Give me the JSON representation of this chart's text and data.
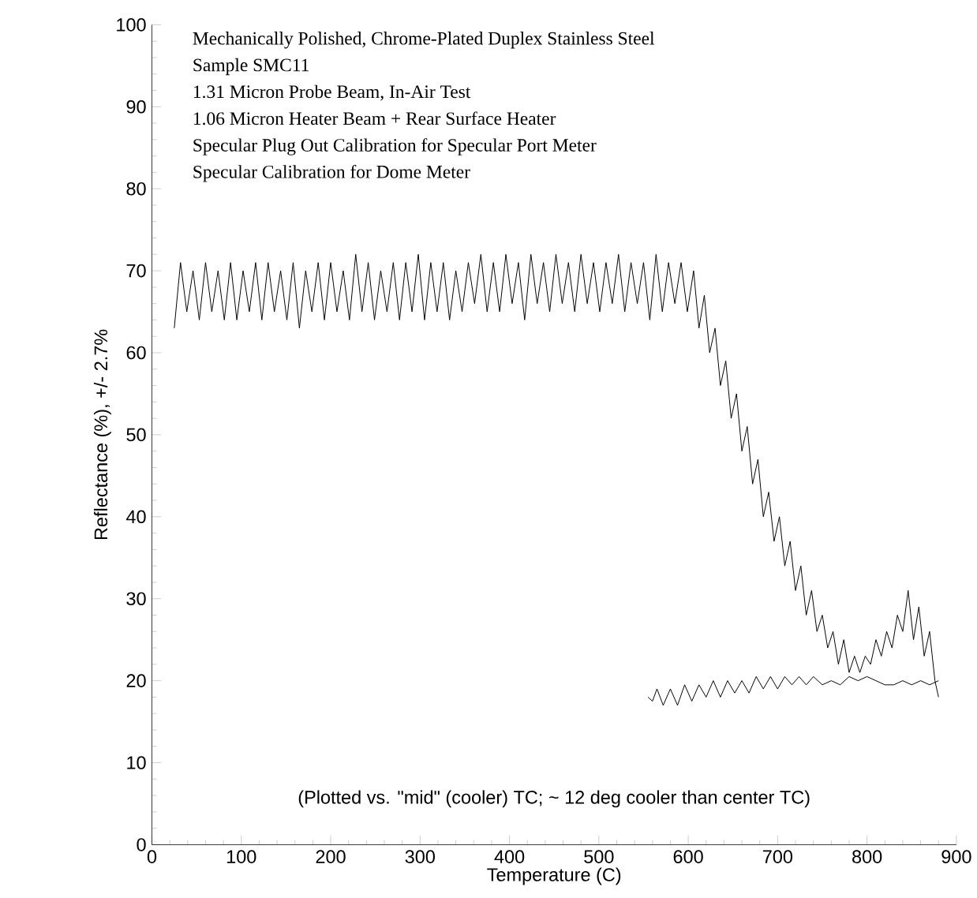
{
  "chart_data": {
    "type": "line",
    "xlabel": "Temperature (C)",
    "ylabel": "Reflectance (%), +/- 2.7%",
    "xlim": [
      0,
      900
    ],
    "ylim": [
      0,
      100
    ],
    "xticks": [
      0,
      100,
      200,
      300,
      400,
      500,
      600,
      700,
      800,
      900
    ],
    "yticks": [
      0,
      10,
      20,
      30,
      40,
      50,
      60,
      70,
      80,
      90,
      100
    ],
    "marker": "none",
    "line_style": "solid",
    "annotations": [
      "Mechanically Polished, Chrome-Plated Duplex Stainless Steel",
      "Sample SMC11",
      "1.31 Micron Probe Beam, In-Air Test",
      "1.06 Micron Heater Beam + Rear Surface Heater",
      "Specular Plug Out Calibration for Specular Port Meter",
      "Specular Calibration for Dome Meter",
      "(Plotted vs. \"mid\" (cooler) TC; ~ 12 deg cooler than center TC)"
    ],
    "series": [
      {
        "color": "#000000",
        "x": [
          25,
          32,
          39,
          46,
          53,
          60,
          67,
          74,
          81,
          88,
          95,
          102,
          109,
          116,
          123,
          130,
          137,
          144,
          151,
          158,
          165,
          172,
          179,
          186,
          193,
          200,
          207,
          214,
          221,
          228,
          235,
          242,
          249,
          256,
          263,
          270,
          277,
          284,
          291,
          298,
          305,
          312,
          319,
          326,
          333,
          340,
          347,
          354,
          361,
          368,
          375,
          382,
          389,
          396,
          403,
          410,
          417,
          424,
          431,
          438,
          445,
          452,
          459,
          466,
          473,
          480,
          487,
          494,
          501,
          508,
          515,
          522,
          529,
          536,
          543,
          550,
          557,
          564,
          571,
          578,
          585,
          592,
          599,
          606,
          612,
          618,
          624,
          630,
          636,
          642,
          648,
          654,
          660,
          666,
          672,
          678,
          684,
          690,
          696,
          702,
          708,
          714,
          720,
          726,
          732,
          738,
          744,
          750,
          756,
          762,
          768,
          774,
          780,
          786,
          792,
          798,
          804,
          810,
          816,
          822,
          828,
          834,
          840,
          846,
          852,
          858,
          864,
          870,
          876,
          880
        ],
        "values": [
          63,
          71,
          65,
          70,
          64,
          71,
          65,
          70,
          64,
          71,
          64,
          70,
          65,
          71,
          64,
          71,
          65,
          70,
          64,
          71,
          63,
          70,
          65,
          71,
          64,
          71,
          65,
          70,
          64,
          72,
          65,
          71,
          64,
          70,
          65,
          71,
          64,
          71,
          65,
          72,
          64,
          71,
          65,
          71,
          64,
          70,
          65,
          71,
          66,
          72,
          65,
          71,
          65,
          72,
          66,
          71,
          64,
          72,
          66,
          71,
          65,
          72,
          66,
          71,
          65,
          72,
          66,
          71,
          65,
          71,
          66,
          72,
          65,
          71,
          66,
          71,
          64,
          72,
          65,
          71,
          66,
          71,
          65,
          70,
          63,
          67,
          60,
          63,
          56,
          59,
          52,
          55,
          48,
          51,
          44,
          47,
          40,
          43,
          37,
          40,
          34,
          37,
          31,
          34,
          28,
          31,
          26,
          28,
          24,
          26,
          22,
          25,
          21,
          23,
          21,
          23,
          22,
          25,
          23,
          26,
          24,
          28,
          26,
          31,
          25,
          29,
          23,
          26,
          20,
          18
        ]
      },
      {
        "color": "#000000",
        "x": [
          555,
          560,
          565,
          572,
          580,
          588,
          596,
          604,
          612,
          620,
          628,
          636,
          644,
          652,
          660,
          668,
          676,
          684,
          692,
          700,
          708,
          716,
          724,
          732,
          740,
          750,
          760,
          770,
          780,
          790,
          800,
          810,
          820,
          830,
          840,
          850,
          860,
          870,
          880
        ],
        "values": [
          18,
          17.5,
          19,
          17,
          19,
          17,
          19.5,
          17.5,
          19.5,
          18,
          20,
          18,
          20,
          18.5,
          20,
          18.5,
          20.5,
          19,
          20.5,
          19,
          20.5,
          19.5,
          20.5,
          19.5,
          20.5,
          19.5,
          20,
          19.5,
          20.5,
          20,
          20.5,
          20,
          19.5,
          19.5,
          20,
          19.5,
          20,
          19.5,
          20
        ]
      }
    ]
  }
}
